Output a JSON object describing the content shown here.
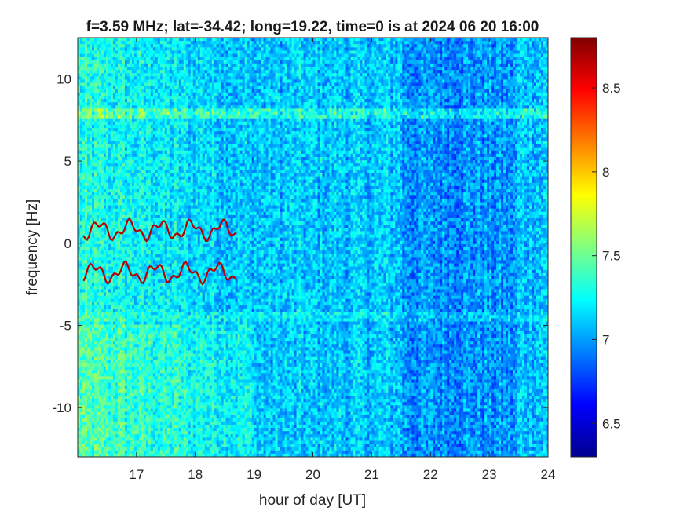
{
  "chart_data": {
    "type": "heatmap",
    "title": "f=3.59 MHz;  lat=-34.42; long=19.22, time=0 is at 2024 06 20 16:00",
    "xlabel": "hour of day [UT]",
    "ylabel": "frequency [Hz]",
    "xlim": [
      16,
      24
    ],
    "ylim": [
      -13,
      12.5
    ],
    "xticks": [
      17,
      18,
      19,
      20,
      21,
      22,
      23,
      24
    ],
    "xtick_labels": [
      "17",
      "18",
      "19",
      "20",
      "21",
      "22",
      "23",
      "24"
    ],
    "yticks": [
      10,
      5,
      0,
      -5,
      -10
    ],
    "ytick_labels": [
      "10",
      "5",
      "0",
      "-5",
      "-10"
    ],
    "colorbar": {
      "colormap": "jet",
      "range": [
        6.3,
        8.8
      ],
      "ticks": [
        8.5,
        8,
        7.5,
        7,
        6.5
      ],
      "tick_labels": [
        "8.5",
        "8",
        "7.5",
        "7",
        "6.5"
      ]
    },
    "features": [
      {
        "kind": "horizontal-band",
        "frequency_hz": 7.9,
        "x_range": [
          16,
          24
        ],
        "level": "high"
      },
      {
        "kind": "horizontal-band",
        "frequency_hz": -4.5,
        "x_range": [
          16,
          24
        ],
        "level": "medium"
      },
      {
        "kind": "trace",
        "x_range": [
          16.1,
          18.7
        ],
        "frequency_hz_center": 0.8,
        "level": "high"
      },
      {
        "kind": "trace",
        "x_range": [
          16.1,
          18.7
        ],
        "frequency_hz_center": -1.8,
        "level": "high"
      }
    ]
  }
}
